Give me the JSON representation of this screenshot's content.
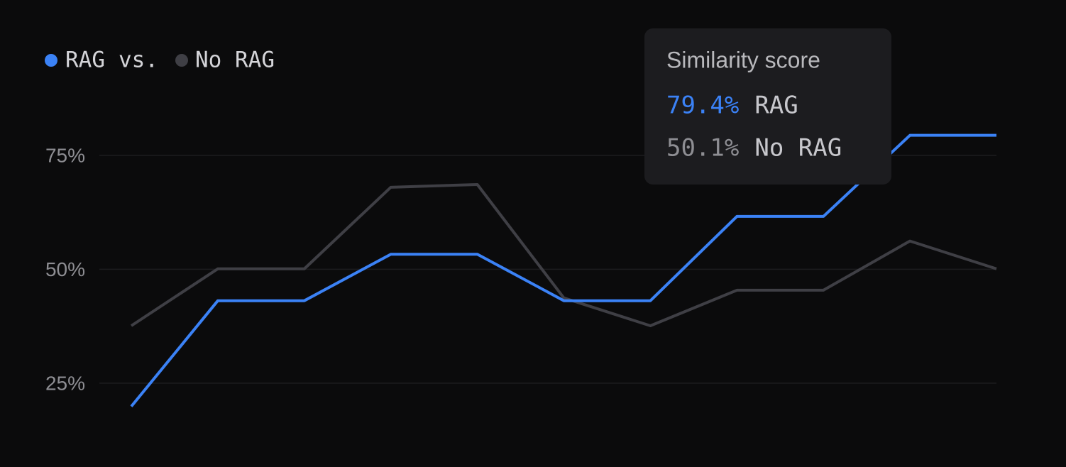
{
  "chart_data": {
    "type": "line",
    "categories": [
      null,
      null,
      null,
      null,
      null,
      null,
      null,
      null,
      null,
      null,
      null
    ],
    "series": [
      {
        "name": "RAG",
        "color": "#3b82f6",
        "values": [
          19.9,
          43.1,
          43.1,
          53.3,
          53.3,
          43.1,
          43.1,
          61.6,
          61.6,
          79.4,
          79.4
        ],
        "value_labels": [
          null,
          null,
          null,
          null,
          null,
          null,
          null,
          null,
          null,
          null,
          "79.4%"
        ]
      },
      {
        "name": "No RAG",
        "color": "#3f3f45",
        "values": [
          37.6,
          50.1,
          50.1,
          68.0,
          68.6,
          43.7,
          37.6,
          45.4,
          45.4,
          56.2,
          50.1
        ],
        "value_labels": [
          null,
          null,
          null,
          null,
          null,
          null,
          null,
          null,
          null,
          null,
          "50.1%"
        ]
      }
    ],
    "legend_separator": "vs.",
    "tooltip_title": "Similarity score",
    "ylim": [
      6.6,
      109.1
    ],
    "yticks": [
      {
        "value": 25,
        "label": "25%"
      },
      {
        "value": 50,
        "label": "50%"
      },
      {
        "value": 75,
        "label": "75%"
      }
    ],
    "grid": true
  }
}
